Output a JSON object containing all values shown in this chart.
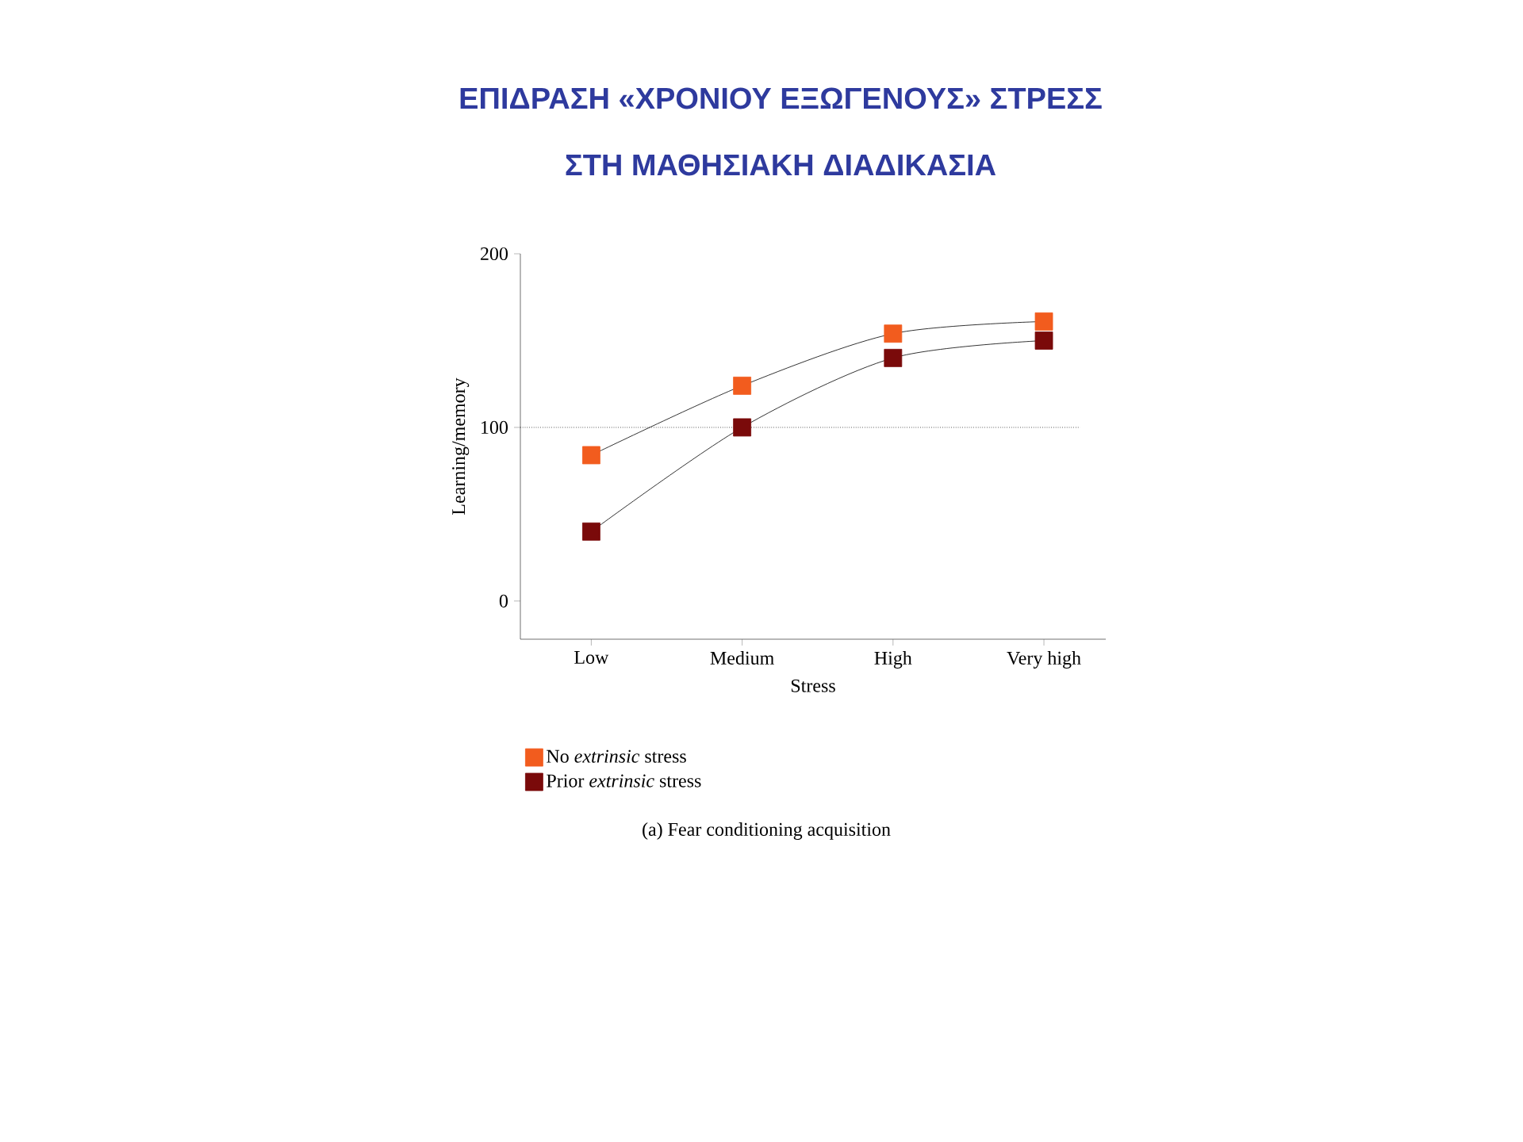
{
  "chart_data": {
    "type": "line",
    "title": "ΕΠΙΔΡΑΣΗ «ΧΡΟΝΙΟΥ ΕΞΩΓΕΝΟΥΣ» ΣΤΡΕΣΣ",
    "subtitle": "ΣΤΗ ΜΑΘΗΣΙΑΚΗ ΔΙΑΔΙΚΑΣΙΑ",
    "xlabel": "Stress",
    "ylabel": "Learning/memory",
    "categories": [
      "Low",
      "Medium",
      "High",
      "Very high"
    ],
    "series": [
      {
        "name": "No *extrinsic* stress",
        "color": "#f25c1e",
        "values": [
          84,
          124,
          154,
          161
        ]
      },
      {
        "name": "Prior *extrinsic* stress",
        "color": "#7a0a0a",
        "values": [
          40,
          100,
          140,
          150
        ]
      }
    ],
    "ylim": [
      -22,
      200
    ],
    "yticks": [
      0,
      100,
      200
    ],
    "ref_lines": [
      {
        "axis": "y",
        "value": 100,
        "line_style": "dotted"
      }
    ],
    "annotations": [
      "(a) Fear conditioning acquisition"
    ],
    "marker": "square",
    "line_style": "solid",
    "grid": false,
    "legend": "bottom left"
  }
}
